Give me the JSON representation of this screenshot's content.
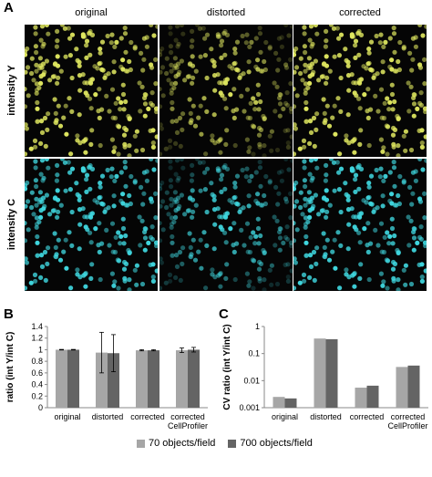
{
  "panel_a": {
    "letter": "A",
    "columns": [
      "original",
      "distorted",
      "corrected"
    ],
    "rows": [
      "intensity Y",
      "intensity C"
    ],
    "row_colors": [
      "#e0e860",
      "#40d8e0"
    ]
  },
  "panel_b": {
    "letter": "B"
  },
  "panel_c": {
    "letter": "C"
  },
  "legend": [
    {
      "name": "70 objects/field",
      "color": "#a6a6a6"
    },
    {
      "name": "700 objects/field",
      "color": "#646464"
    }
  ],
  "chart_data": [
    {
      "type": "bar",
      "ylabel": "ratio (int Y/int C)",
      "categories": [
        "original",
        "distorted",
        "corrected",
        "corrected\nCellProfiler"
      ],
      "ylim": [
        0,
        1.4
      ],
      "yticks": [
        "0",
        "0.2",
        "0.4",
        "0.6",
        "0.8",
        "1",
        "1.2",
        "1.4"
      ],
      "series": [
        {
          "name": "70 objects/field",
          "color": "#a6a6a6",
          "values": [
            1.0,
            0.95,
            0.99,
            0.99
          ],
          "errors": [
            0.005,
            0.35,
            0.01,
            0.04
          ]
        },
        {
          "name": "700 objects/field",
          "color": "#646464",
          "values": [
            1.0,
            0.94,
            0.99,
            1.0
          ],
          "errors": [
            0.005,
            0.32,
            0.01,
            0.04
          ]
        }
      ]
    },
    {
      "type": "bar",
      "ylabel": "CV ratio (int Y/int C)",
      "categories": [
        "original",
        "distorted",
        "corrected",
        "corrected\nCellProfiler"
      ],
      "scale": "log",
      "ylim": [
        0.001,
        1
      ],
      "yticks": [
        "1",
        "0.1",
        "0.01",
        "0.001"
      ],
      "series": [
        {
          "name": "70 objects/field",
          "color": "#a6a6a6",
          "values": [
            0.0025,
            0.36,
            0.0055,
            0.032
          ]
        },
        {
          "name": "700 objects/field",
          "color": "#646464",
          "values": [
            0.0022,
            0.34,
            0.0065,
            0.036
          ]
        }
      ]
    }
  ]
}
